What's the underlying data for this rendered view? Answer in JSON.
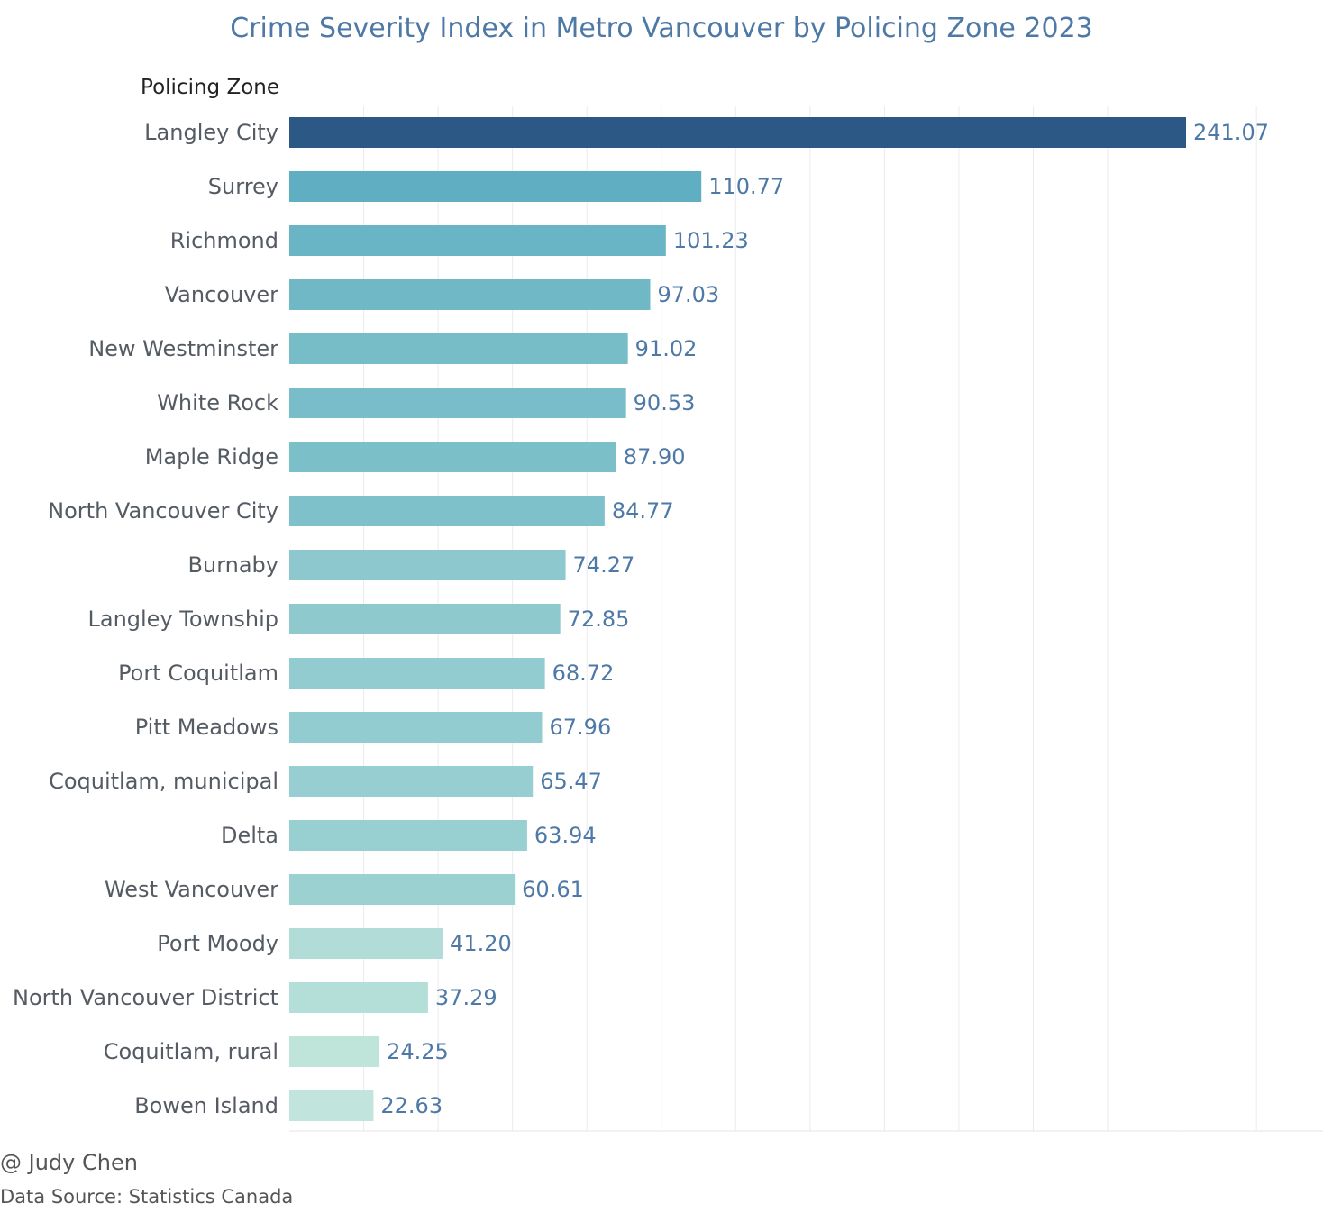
{
  "chart_data": {
    "type": "bar",
    "orientation": "horizontal",
    "title": "Crime Severity Index in Metro Vancouver by Policing Zone 2023",
    "ylabel": "Policing Zone",
    "xlabel": "",
    "xlim": [
      0,
      260
    ],
    "grid": true,
    "categories": [
      "Langley City",
      "Surrey",
      "Richmond",
      "Vancouver",
      "New Westminster",
      "White Rock",
      "Maple Ridge",
      "North Vancouver City",
      "Burnaby",
      "Langley Township",
      "Port Coquitlam",
      "Pitt Meadows",
      "Coquitlam, municipal",
      "Delta",
      "West Vancouver",
      "Port Moody",
      "North Vancouver District",
      "Coquitlam, rural",
      "Bowen Island"
    ],
    "values": [
      241.07,
      110.77,
      101.23,
      97.03,
      91.02,
      90.53,
      87.9,
      84.77,
      74.27,
      72.85,
      68.72,
      67.96,
      65.47,
      63.94,
      60.61,
      41.2,
      37.29,
      24.25,
      22.63
    ],
    "value_labels": [
      "241.07",
      "110.77",
      "101.23",
      "97.03",
      "91.02",
      "90.53",
      "87.90",
      "84.77",
      "74.27",
      "72.85",
      "68.72",
      "67.96",
      "65.47",
      "63.94",
      "60.61",
      "41.20",
      "37.29",
      "24.25",
      "22.63"
    ],
    "color_scale": {
      "low": "#c2e6dc",
      "mid": "#5fafc2",
      "high": "#2c5886"
    }
  },
  "footer": {
    "credit": "@ Judy Chen",
    "source": "Data Source: Statistics Canada"
  }
}
